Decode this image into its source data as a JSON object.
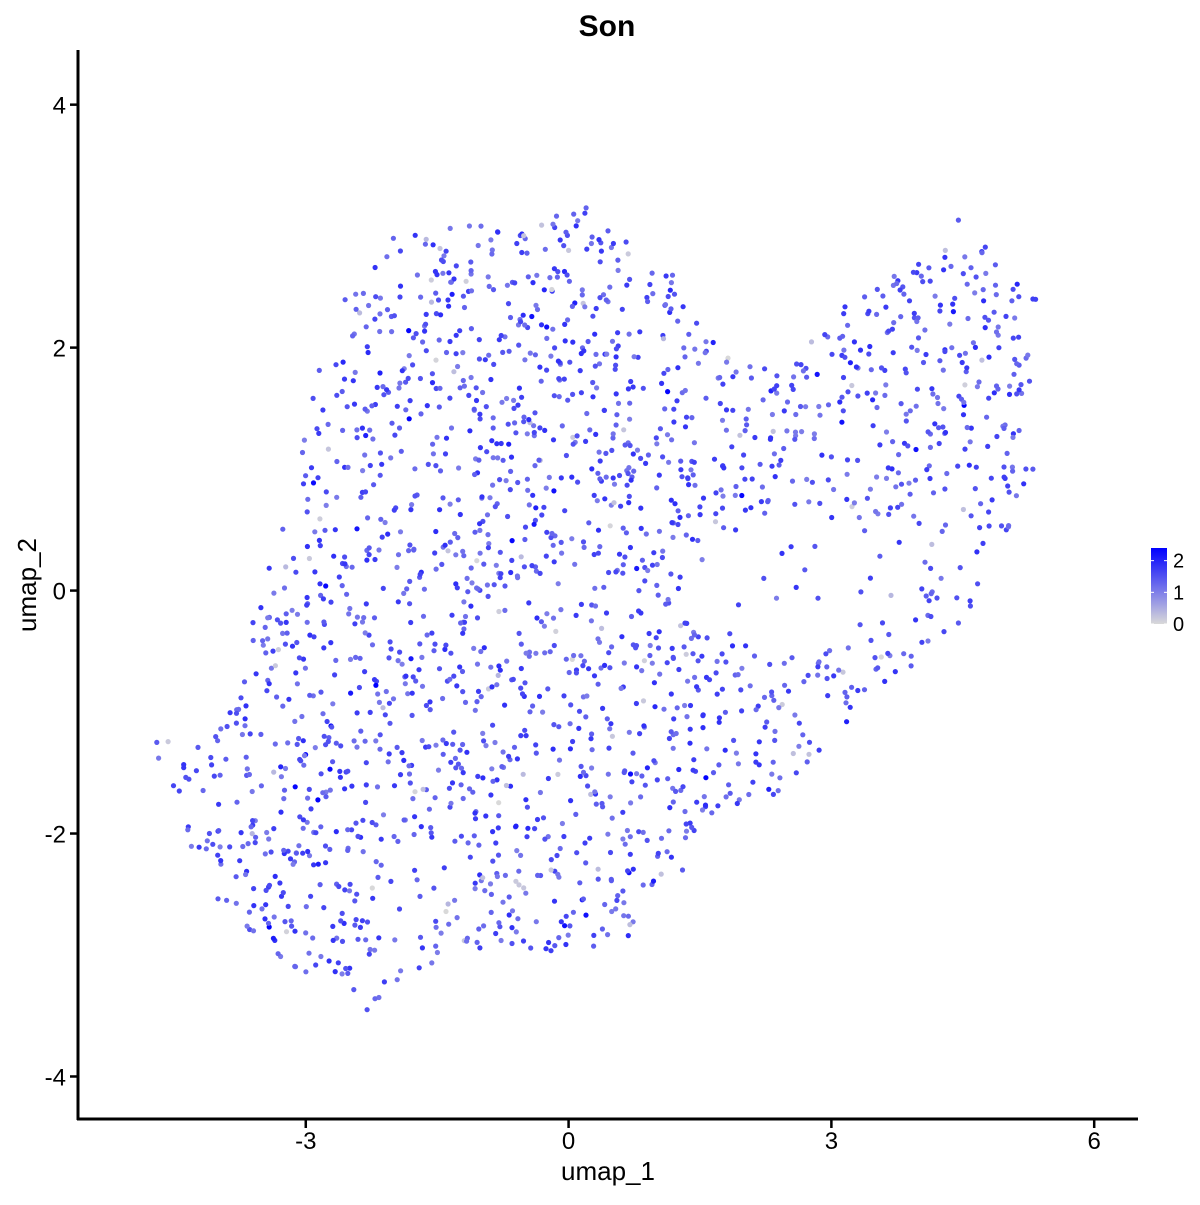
{
  "chart_data": {
    "type": "scatter",
    "title": "Son",
    "xlabel": "umap_1",
    "ylabel": "umap_2",
    "xlim": [
      -5.6,
      6.5
    ],
    "ylim": [
      -4.35,
      4.45
    ],
    "x_ticks": [
      -3,
      0,
      3,
      6
    ],
    "y_ticks": [
      4,
      2,
      0,
      -2,
      -4
    ],
    "x_tick_labels": [
      "-3",
      "0",
      "3",
      "6"
    ],
    "y_tick_labels": [
      "4",
      "2",
      "0",
      "-2",
      "-4"
    ],
    "grid": false,
    "legend": {
      "placement": "right",
      "type": "colorbar",
      "ticks": [
        2,
        1,
        0
      ],
      "tick_labels": [
        "2",
        "1",
        "0"
      ],
      "range": [
        0,
        2.4
      ],
      "low_color": "#d9d9d9",
      "high_color": "#0000ff"
    },
    "point_count": 2100,
    "point_color_typical": "#7b4ff0",
    "points_sample": [
      {
        "x": -4.7,
        "y": -1.25,
        "value": 1.4
      },
      {
        "x": -4.1,
        "y": -2.0,
        "value": 1.5
      },
      {
        "x": -3.2,
        "y": -2.6,
        "value": 1.6
      },
      {
        "x": -2.3,
        "y": -3.45,
        "value": 1.5
      },
      {
        "x": -2.2,
        "y": -0.78,
        "value": 2.4
      },
      {
        "x": -2.0,
        "y": 2.9,
        "value": 1.3
      },
      {
        "x": -1.0,
        "y": 3.0,
        "value": 1.2
      },
      {
        "x": 0.2,
        "y": 3.15,
        "value": 1.3
      },
      {
        "x": -0.25,
        "y": 2.17,
        "value": 2.2
      },
      {
        "x": 0.0,
        "y": 2.8,
        "value": 0.2
      },
      {
        "x": 4.3,
        "y": 2.8,
        "value": 0.3
      },
      {
        "x": 4.45,
        "y": 3.05,
        "value": 1.4
      },
      {
        "x": 5.3,
        "y": 2.4,
        "value": 1.7
      },
      {
        "x": 5.3,
        "y": 1.0,
        "value": 1.4
      },
      {
        "x": 3.0,
        "y": 1.1,
        "value": 1.5
      },
      {
        "x": 2.6,
        "y": -1.5,
        "value": 1.6
      },
      {
        "x": 1.3,
        "y": -2.3,
        "value": 1.4
      },
      {
        "x": 0.7,
        "y": -2.75,
        "value": 0.3
      },
      {
        "x": -0.2,
        "y": -2.3,
        "value": 0.2
      },
      {
        "x": 0.5,
        "y": -1.2,
        "value": 0.2
      }
    ]
  }
}
